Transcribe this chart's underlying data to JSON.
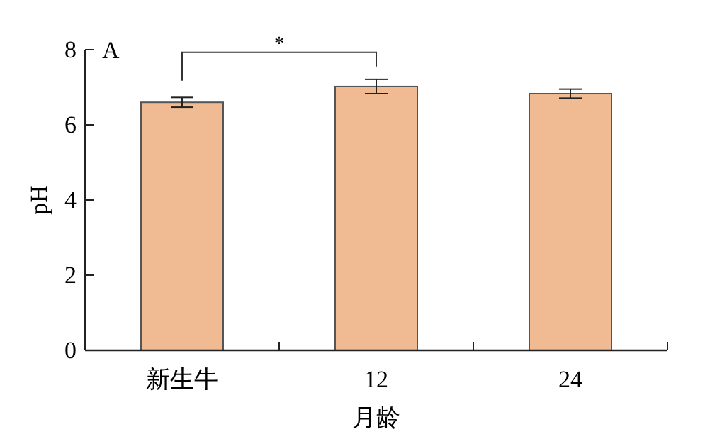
{
  "chart_data": {
    "type": "bar",
    "xlabel": "月龄",
    "ylabel": "pH",
    "categories": [
      "新生牛",
      "12",
      "24"
    ],
    "values": [
      6.6,
      7.02,
      6.83
    ],
    "errors": [
      0.13,
      0.19,
      0.12
    ],
    "color": "#f0bb92",
    "ylim": [
      0,
      8
    ],
    "yticks": [
      0,
      2,
      4,
      6,
      8
    ],
    "grid": false,
    "annotations": [
      "A",
      "*"
    ]
  }
}
